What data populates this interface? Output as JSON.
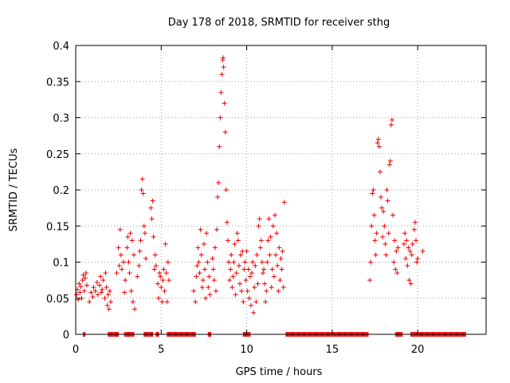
{
  "chart_data": {
    "type": "scatter",
    "title": "Day 178 of 2018, SRMTID for receiver sthg",
    "xlabel": "GPS time / hours",
    "ylabel": "SRMTID / TECUs",
    "xlim": [
      0,
      24
    ],
    "ylim": [
      0,
      0.4
    ],
    "xticks": [
      0,
      5,
      10,
      15,
      20
    ],
    "yticks": [
      0,
      0.05,
      0.1,
      0.15,
      0.2,
      0.25,
      0.3,
      0.35,
      0.4
    ],
    "xtick_labels": [
      "0",
      "5",
      "10",
      "15",
      "20"
    ],
    "ytick_labels": [
      "0",
      "0.05",
      "0.1",
      "0.15",
      "0.2",
      "0.25",
      "0.3",
      "0.35",
      "0.4"
    ],
    "grid": true,
    "marker": "+",
    "color": "#ee0000",
    "series": [
      {
        "name": "SRMTID",
        "points": [
          [
            0.05,
            0.055
          ],
          [
            0.1,
            0.062
          ],
          [
            0.15,
            0.048
          ],
          [
            0.2,
            0.07
          ],
          [
            0.25,
            0.058
          ],
          [
            0.3,
            0.066
          ],
          [
            0.35,
            0.05
          ],
          [
            0.4,
            0.075
          ],
          [
            0.45,
            0.082
          ],
          [
            0.5,
            0.06
          ],
          [
            0.55,
            0.078
          ],
          [
            0.6,
            0.085
          ],
          [
            0.65,
            0.068
          ],
          [
            0.8,
            0.045
          ],
          [
            0.9,
            0.058
          ],
          [
            1.0,
            0.052
          ],
          [
            1.05,
            0.065
          ],
          [
            1.15,
            0.06
          ],
          [
            1.25,
            0.072
          ],
          [
            1.3,
            0.055
          ],
          [
            1.4,
            0.068
          ],
          [
            1.45,
            0.08
          ],
          [
            1.5,
            0.058
          ],
          [
            1.55,
            0.062
          ],
          [
            1.6,
            0.075
          ],
          [
            1.7,
            0.05
          ],
          [
            1.75,
            0.085
          ],
          [
            1.8,
            0.065
          ],
          [
            1.85,
            0.04
          ],
          [
            1.9,
            0.055
          ],
          [
            1.95,
            0.035
          ],
          [
            2.0,
            0.06
          ],
          [
            2.05,
            0.045
          ],
          [
            2.4,
            0.085
          ],
          [
            2.5,
            0.12
          ],
          [
            2.55,
            0.095
          ],
          [
            2.6,
            0.145
          ],
          [
            2.65,
            0.11
          ],
          [
            2.7,
            0.09
          ],
          [
            2.8,
            0.1
          ],
          [
            2.85,
            0.058
          ],
          [
            2.9,
            0.075
          ],
          [
            3.0,
            0.12
          ],
          [
            3.05,
            0.135
          ],
          [
            3.1,
            0.1
          ],
          [
            3.15,
            0.085
          ],
          [
            3.2,
            0.14
          ],
          [
            3.25,
            0.06
          ],
          [
            3.3,
            0.13
          ],
          [
            3.35,
            0.045
          ],
          [
            3.4,
            0.11
          ],
          [
            3.45,
            0.035
          ],
          [
            3.6,
            0.08
          ],
          [
            3.7,
            0.095
          ],
          [
            3.75,
            0.115
          ],
          [
            3.8,
            0.13
          ],
          [
            3.85,
            0.2
          ],
          [
            3.9,
            0.215
          ],
          [
            3.95,
            0.195
          ],
          [
            4.0,
            0.15
          ],
          [
            4.05,
            0.14
          ],
          [
            4.1,
            0.105
          ],
          [
            4.4,
            0.175
          ],
          [
            4.45,
            0.16
          ],
          [
            4.5,
            0.185
          ],
          [
            4.55,
            0.135
          ],
          [
            4.6,
            0.09
          ],
          [
            4.65,
            0.11
          ],
          [
            4.7,
            0.095
          ],
          [
            4.8,
            0.07
          ],
          [
            4.85,
            0.05
          ],
          [
            4.9,
            0.085
          ],
          [
            4.95,
            0.08
          ],
          [
            5.0,
            0.065
          ],
          [
            5.05,
            0.045
          ],
          [
            5.1,
            0.075
          ],
          [
            5.15,
            0.09
          ],
          [
            5.2,
            0.06
          ],
          [
            5.25,
            0.125
          ],
          [
            5.3,
            0.085
          ],
          [
            5.35,
            0.045
          ],
          [
            5.4,
            0.1
          ],
          [
            5.45,
            0.075
          ],
          [
            6.9,
            0.06
          ],
          [
            7.0,
            0.045
          ],
          [
            7.05,
            0.08
          ],
          [
            7.1,
            0.095
          ],
          [
            7.15,
            0.12
          ],
          [
            7.2,
            0.1
          ],
          [
            7.25,
            0.085
          ],
          [
            7.3,
            0.145
          ],
          [
            7.35,
            0.11
          ],
          [
            7.4,
            0.065
          ],
          [
            7.45,
            0.075
          ],
          [
            7.5,
            0.125
          ],
          [
            7.55,
            0.09
          ],
          [
            7.6,
            0.05
          ],
          [
            7.65,
            0.14
          ],
          [
            7.7,
            0.1
          ],
          [
            7.75,
            0.065
          ],
          [
            7.8,
            0.08
          ],
          [
            7.85,
            0.055
          ],
          [
            8.0,
            0.105
          ],
          [
            8.05,
            0.09
          ],
          [
            8.1,
            0.075
          ],
          [
            8.15,
            0.12
          ],
          [
            8.2,
            0.06
          ],
          [
            8.25,
            0.145
          ],
          [
            8.3,
            0.19
          ],
          [
            8.35,
            0.21
          ],
          [
            8.4,
            0.26
          ],
          [
            8.45,
            0.3
          ],
          [
            8.5,
            0.335
          ],
          [
            8.55,
            0.36
          ],
          [
            8.6,
            0.38
          ],
          [
            8.62,
            0.383
          ],
          [
            8.65,
            0.37
          ],
          [
            8.7,
            0.32
          ],
          [
            8.75,
            0.28
          ],
          [
            8.8,
            0.2
          ],
          [
            8.85,
            0.155
          ],
          [
            8.9,
            0.13
          ],
          [
            8.95,
            0.1
          ],
          [
            9.0,
            0.075
          ],
          [
            9.05,
            0.09
          ],
          [
            9.1,
            0.11
          ],
          [
            9.15,
            0.065
          ],
          [
            9.2,
            0.08
          ],
          [
            9.25,
            0.1
          ],
          [
            9.3,
            0.125
          ],
          [
            9.35,
            0.055
          ],
          [
            9.4,
            0.085
          ],
          [
            9.45,
            0.14
          ],
          [
            9.5,
            0.13
          ],
          [
            9.55,
            0.095
          ],
          [
            9.6,
            0.07
          ],
          [
            9.65,
            0.11
          ],
          [
            9.7,
            0.06
          ],
          [
            9.75,
            0.115
          ],
          [
            9.8,
            0.045
          ],
          [
            9.85,
            0.09
          ],
          [
            9.9,
            0.1
          ],
          [
            9.95,
            0.075
          ],
          [
            10.0,
            0.115
          ],
          [
            10.05,
            0.06
          ],
          [
            10.1,
            0.09
          ],
          [
            10.15,
            0.05
          ],
          [
            10.2,
            0.08
          ],
          [
            10.25,
            0.04
          ],
          [
            10.3,
            0.085
          ],
          [
            10.35,
            0.1
          ],
          [
            10.4,
            0.03
          ],
          [
            10.45,
            0.065
          ],
          [
            10.5,
            0.095
          ],
          [
            10.55,
            0.045
          ],
          [
            10.6,
            0.11
          ],
          [
            10.65,
            0.07
          ],
          [
            10.7,
            0.15
          ],
          [
            10.75,
            0.16
          ],
          [
            10.8,
            0.12
          ],
          [
            10.85,
            0.13
          ],
          [
            10.9,
            0.1
          ],
          [
            10.95,
            0.085
          ],
          [
            11.0,
            0.09
          ],
          [
            11.05,
            0.07
          ],
          [
            11.1,
            0.045
          ],
          [
            11.15,
            0.06
          ],
          [
            11.2,
            0.1
          ],
          [
            11.25,
            0.13
          ],
          [
            11.3,
            0.16
          ],
          [
            11.35,
            0.11
          ],
          [
            11.4,
            0.135
          ],
          [
            11.45,
            0.065
          ],
          [
            11.5,
            0.09
          ],
          [
            11.55,
            0.15
          ],
          [
            11.6,
            0.08
          ],
          [
            11.65,
            0.165
          ],
          [
            11.7,
            0.11
          ],
          [
            11.75,
            0.14
          ],
          [
            11.8,
            0.095
          ],
          [
            11.85,
            0.06
          ],
          [
            11.9,
            0.12
          ],
          [
            11.95,
            0.075
          ],
          [
            12.0,
            0.105
          ],
          [
            12.05,
            0.09
          ],
          [
            12.1,
            0.115
          ],
          [
            12.15,
            0.065
          ],
          [
            12.2,
            0.183
          ],
          [
            17.2,
            0.075
          ],
          [
            17.25,
            0.1
          ],
          [
            17.3,
            0.15
          ],
          [
            17.35,
            0.195
          ],
          [
            17.4,
            0.2
          ],
          [
            17.45,
            0.165
          ],
          [
            17.5,
            0.13
          ],
          [
            17.55,
            0.11
          ],
          [
            17.6,
            0.14
          ],
          [
            17.65,
            0.265
          ],
          [
            17.7,
            0.27
          ],
          [
            17.75,
            0.26
          ],
          [
            17.8,
            0.225
          ],
          [
            17.85,
            0.19
          ],
          [
            17.9,
            0.175
          ],
          [
            17.95,
            0.135
          ],
          [
            18.0,
            0.17
          ],
          [
            18.05,
            0.15
          ],
          [
            18.1,
            0.125
          ],
          [
            18.15,
            0.11
          ],
          [
            18.2,
            0.2
          ],
          [
            18.25,
            0.185
          ],
          [
            18.3,
            0.14
          ],
          [
            18.35,
            0.235
          ],
          [
            18.4,
            0.24
          ],
          [
            18.45,
            0.29
          ],
          [
            18.5,
            0.297
          ],
          [
            18.55,
            0.165
          ],
          [
            18.6,
            0.1
          ],
          [
            18.65,
            0.13
          ],
          [
            18.7,
            0.09
          ],
          [
            18.75,
            0.115
          ],
          [
            18.8,
            0.085
          ],
          [
            18.85,
            0.12
          ],
          [
            19.2,
            0.125
          ],
          [
            19.25,
            0.14
          ],
          [
            19.3,
            0.105
          ],
          [
            19.35,
            0.13
          ],
          [
            19.4,
            0.095
          ],
          [
            19.45,
            0.12
          ],
          [
            19.5,
            0.075
          ],
          [
            19.55,
            0.115
          ],
          [
            19.6,
            0.07
          ],
          [
            19.65,
            0.11
          ],
          [
            19.7,
            0.125
          ],
          [
            19.8,
            0.145
          ],
          [
            19.85,
            0.155
          ],
          [
            19.9,
            0.13
          ],
          [
            19.95,
            0.1
          ],
          [
            20.0,
            0.105
          ],
          [
            20.3,
            0.115
          ]
        ],
        "zero_segments": [
          [
            0.45,
            0.55
          ],
          [
            1.9,
            2.5
          ],
          [
            2.85,
            3.4
          ],
          [
            4.0,
            4.5
          ],
          [
            4.7,
            4.85
          ],
          [
            5.35,
            7.0
          ],
          [
            7.75,
            7.9
          ],
          [
            9.8,
            10.2
          ],
          [
            12.3,
            17.1
          ],
          [
            18.7,
            19.1
          ],
          [
            19.6,
            22.8
          ]
        ]
      }
    ]
  }
}
